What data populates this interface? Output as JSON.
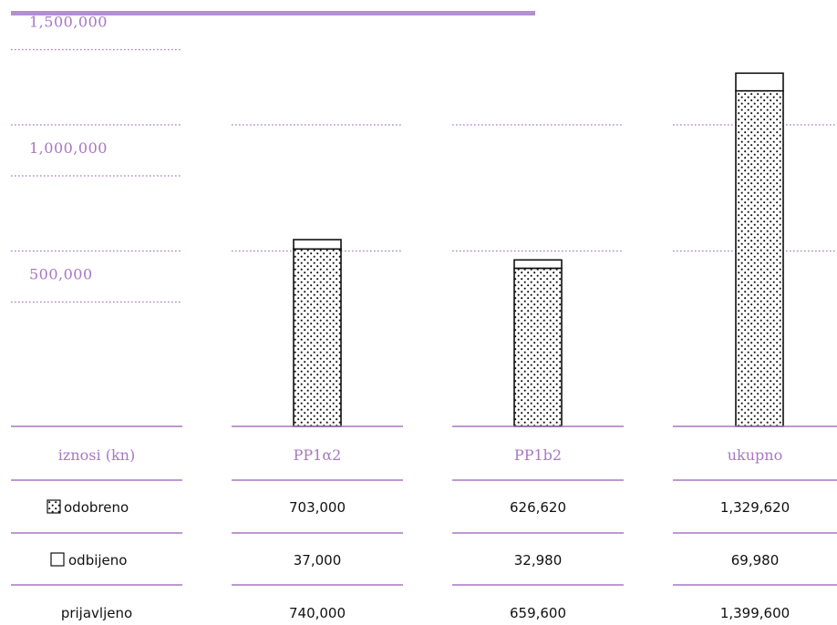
{
  "colors": {
    "accent": "#a877c4",
    "rule": "#b48fce",
    "ink": "#111111"
  },
  "table": {
    "header": "iznosi (kn)",
    "rows": [
      {
        "label": "odobreno",
        "icon": "dotted-square-icon"
      },
      {
        "label": "odbijeno",
        "icon": "empty-square-icon"
      },
      {
        "label": "prijavljeno",
        "icon": ""
      }
    ]
  },
  "chart_data": {
    "type": "bar",
    "stacked": true,
    "categories": [
      "PP1α2",
      "PP1b2",
      "ukupno"
    ],
    "series": [
      {
        "name": "odobreno",
        "values": [
          703000,
          626620,
          1329620
        ],
        "display": [
          "703,000",
          "626,620",
          "1,329,620"
        ],
        "fill": "dotted"
      },
      {
        "name": "odbijeno",
        "values": [
          37000,
          32980,
          69980
        ],
        "display": [
          "37,000",
          "32,980",
          "69,980"
        ],
        "fill": "white"
      }
    ],
    "totals": {
      "name": "prijavljeno",
      "values": [
        740000,
        659600,
        1399600
      ],
      "display": [
        "740,000",
        "659,600",
        "1,399,600"
      ]
    },
    "yticks": [
      500000,
      1000000,
      1500000
    ],
    "ytick_labels": [
      "500,000",
      "1,000,000",
      "1,500,000"
    ],
    "ylim": [
      0,
      1500000
    ],
    "grid": true
  }
}
